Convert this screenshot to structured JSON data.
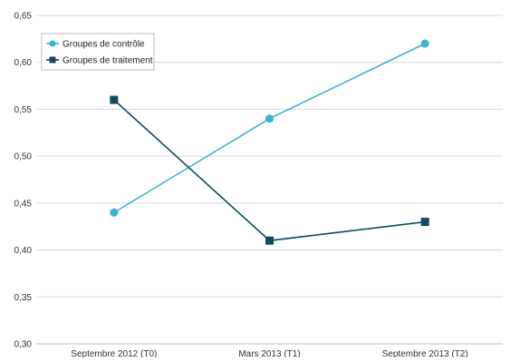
{
  "chart_data": {
    "type": "line",
    "categories": [
      "Septembre 2012 (T0)",
      "Mars 2013 (T1)",
      "Septembre 2013 (T2)"
    ],
    "series": [
      {
        "name": "Groupes de contrôle",
        "values": [
          0.44,
          0.54,
          0.62
        ],
        "color": "#3BB3D0",
        "marker": "circle"
      },
      {
        "name": "Groupes de traitement",
        "values": [
          0.56,
          0.41,
          0.43
        ],
        "color": "#0F4C5F",
        "marker": "square"
      }
    ],
    "ylim": [
      0.3,
      0.65
    ],
    "yticks": [
      "0,30",
      "0,35",
      "0,40",
      "0,45",
      "0,50",
      "0,55",
      "0,60",
      "0,65"
    ],
    "grid": true,
    "legend_position": "top-left",
    "title": "",
    "xlabel": "",
    "ylabel": ""
  }
}
